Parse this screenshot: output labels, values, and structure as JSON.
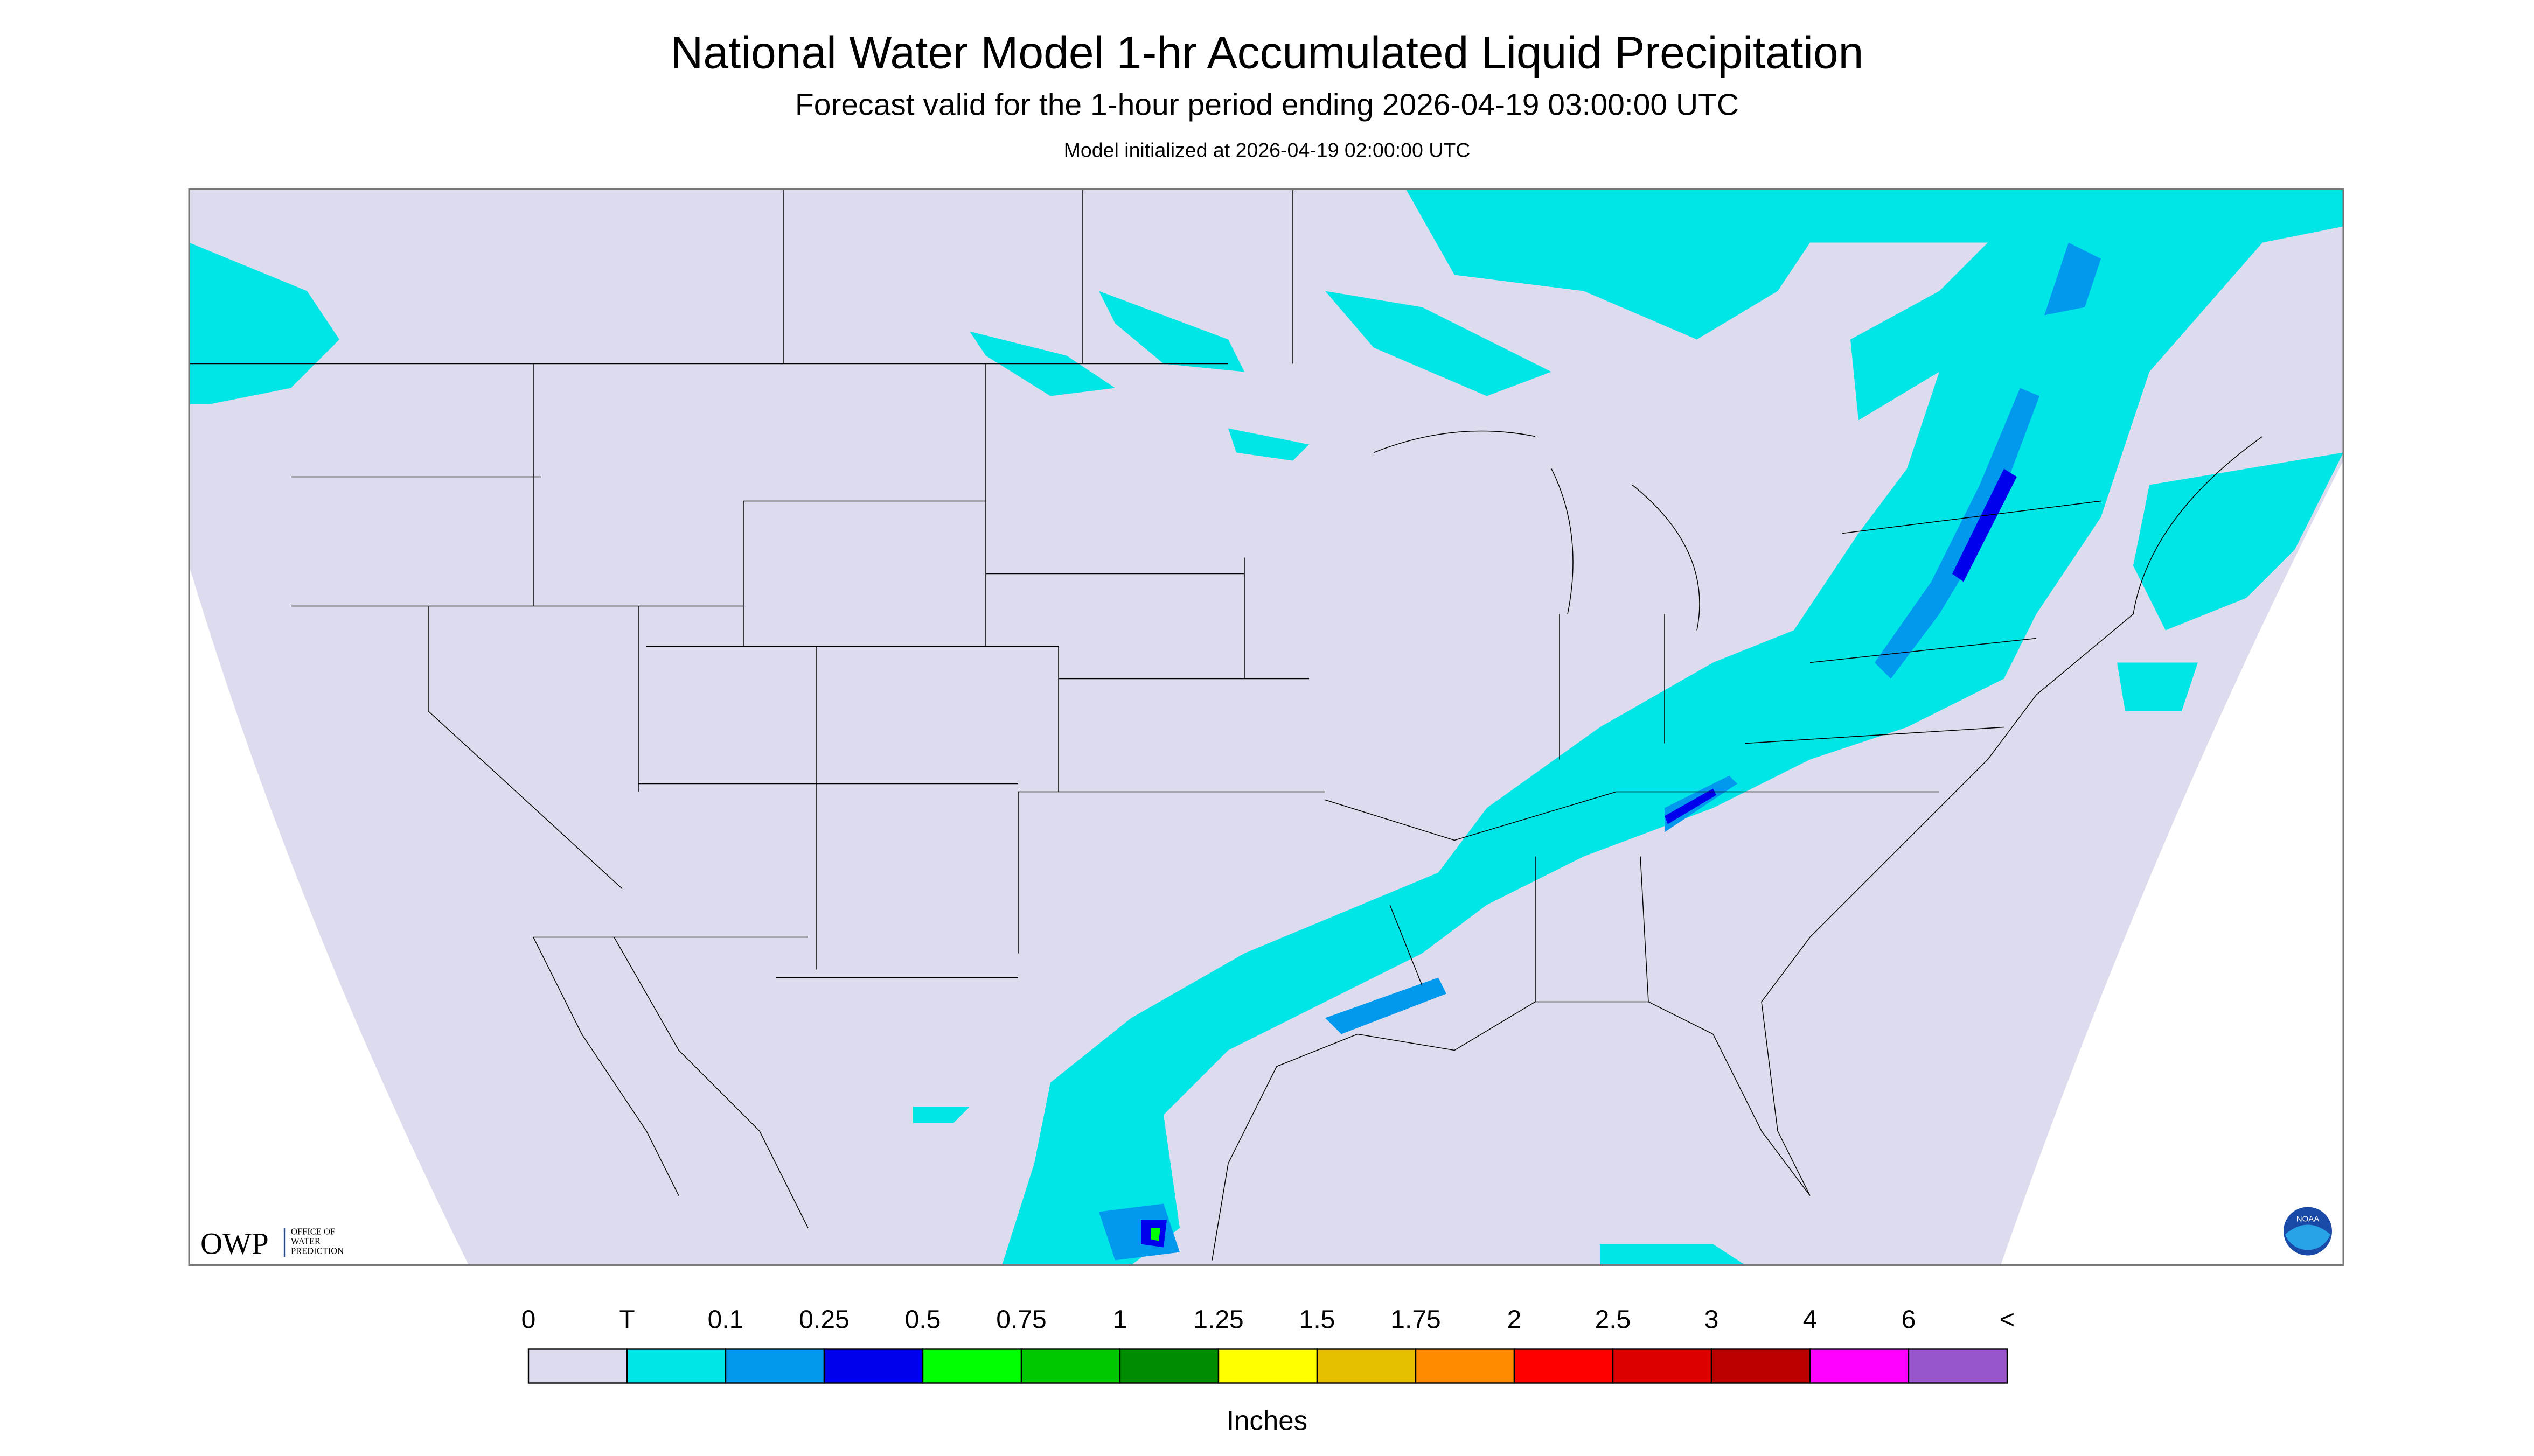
{
  "header": {
    "title": "National Water Model 1-hr Accumulated Liquid Precipitation",
    "subtitle": "Forecast valid for the 1-hour period ending 2026-04-19 03:00:00 UTC",
    "init": "Model initialized at 2026-04-19 02:00:00 UTC"
  },
  "logos": {
    "owp": "OWP",
    "owp_line1": "OFFICE OF",
    "owp_line2": "WATER",
    "owp_line3": "PREDICTION",
    "noaa": "NOAA"
  },
  "legend": {
    "labels": [
      "0",
      "T",
      "0.1",
      "0.25",
      "0.5",
      "0.75",
      "1",
      "1.25",
      "1.5",
      "1.75",
      "2",
      "2.5",
      "3",
      "4",
      "6",
      "<"
    ],
    "colors": [
      "#dcdcee",
      "#00e5e5",
      "#0099ee",
      "#0000ee",
      "#00ff00",
      "#00c800",
      "#008c00",
      "#ffff00",
      "#e6c000",
      "#ff8c00",
      "#ff0000",
      "#dd0000",
      "#bb0000",
      "#ff00ff",
      "#9955cc"
    ],
    "unit": "Inches"
  }
}
